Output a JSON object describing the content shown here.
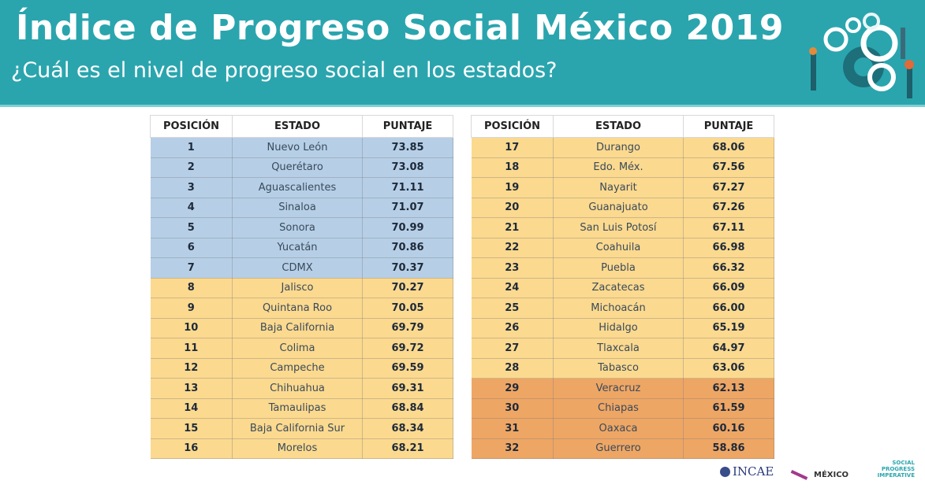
{
  "header": {
    "title": "Índice de Progreso Social México 2019",
    "subtitle": "¿Cuál es el nivel de progreso social en los estados?",
    "illustration_icon": "gears-and-people-icon"
  },
  "colors": {
    "header": "#2aa5ae",
    "tier_high": "#b6cfe6",
    "tier_mid": "#fbd98f",
    "tier_low": "#eea665"
  },
  "table": {
    "columns": [
      "POSICIÓN",
      "ESTADO",
      "PUNTAJE"
    ],
    "rows": [
      {
        "pos": "1",
        "state": "Nuevo León",
        "score": "73.85",
        "tier": "high"
      },
      {
        "pos": "2",
        "state": "Querétaro",
        "score": "73.08",
        "tier": "high"
      },
      {
        "pos": "3",
        "state": "Aguascalientes",
        "score": "71.11",
        "tier": "high"
      },
      {
        "pos": "4",
        "state": "Sinaloa",
        "score": "71.07",
        "tier": "high"
      },
      {
        "pos": "5",
        "state": "Sonora",
        "score": "70.99",
        "tier": "high"
      },
      {
        "pos": "6",
        "state": "Yucatán",
        "score": "70.86",
        "tier": "high"
      },
      {
        "pos": "7",
        "state": "CDMX",
        "score": "70.37",
        "tier": "high"
      },
      {
        "pos": "8",
        "state": "Jalisco",
        "score": "70.27",
        "tier": "mid"
      },
      {
        "pos": "9",
        "state": "Quintana Roo",
        "score": "70.05",
        "tier": "mid"
      },
      {
        "pos": "10",
        "state": "Baja California",
        "score": "69.79",
        "tier": "mid"
      },
      {
        "pos": "11",
        "state": "Colima",
        "score": "69.72",
        "tier": "mid"
      },
      {
        "pos": "12",
        "state": "Campeche",
        "score": "69.59",
        "tier": "mid"
      },
      {
        "pos": "13",
        "state": "Chihuahua",
        "score": "69.31",
        "tier": "mid"
      },
      {
        "pos": "14",
        "state": "Tamaulipas",
        "score": "68.84",
        "tier": "mid"
      },
      {
        "pos": "15",
        "state": "Baja California Sur",
        "score": "68.34",
        "tier": "mid"
      },
      {
        "pos": "16",
        "state": "Morelos",
        "score": "68.21",
        "tier": "mid"
      },
      {
        "pos": "17",
        "state": "Durango",
        "score": "68.06",
        "tier": "mid"
      },
      {
        "pos": "18",
        "state": "Edo. Méx.",
        "score": "67.56",
        "tier": "mid"
      },
      {
        "pos": "19",
        "state": "Nayarit",
        "score": "67.27",
        "tier": "mid"
      },
      {
        "pos": "20",
        "state": "Guanajuato",
        "score": "67.26",
        "tier": "mid"
      },
      {
        "pos": "21",
        "state": "San Luis Potosí",
        "score": "67.11",
        "tier": "mid"
      },
      {
        "pos": "22",
        "state": "Coahuila",
        "score": "66.98",
        "tier": "mid"
      },
      {
        "pos": "23",
        "state": "Puebla",
        "score": "66.32",
        "tier": "mid"
      },
      {
        "pos": "24",
        "state": "Zacatecas",
        "score": "66.09",
        "tier": "mid"
      },
      {
        "pos": "25",
        "state": "Michoacán",
        "score": "66.00",
        "tier": "mid"
      },
      {
        "pos": "26",
        "state": "Hidalgo",
        "score": "65.19",
        "tier": "mid"
      },
      {
        "pos": "27",
        "state": "Tlaxcala",
        "score": "64.97",
        "tier": "mid"
      },
      {
        "pos": "28",
        "state": "Tabasco",
        "score": "63.06",
        "tier": "mid"
      },
      {
        "pos": "29",
        "state": "Veracruz",
        "score": "62.13",
        "tier": "low"
      },
      {
        "pos": "30",
        "state": "Chiapas",
        "score": "61.59",
        "tier": "low"
      },
      {
        "pos": "31",
        "state": "Oaxaca",
        "score": "60.16",
        "tier": "low"
      },
      {
        "pos": "32",
        "state": "Guerrero",
        "score": "58.86",
        "tier": "low"
      }
    ]
  },
  "logos": {
    "incae": "INCAE",
    "mexico": "MÉXICO",
    "spi": "SOCIAL PROGRESS IMPERATIVE"
  }
}
